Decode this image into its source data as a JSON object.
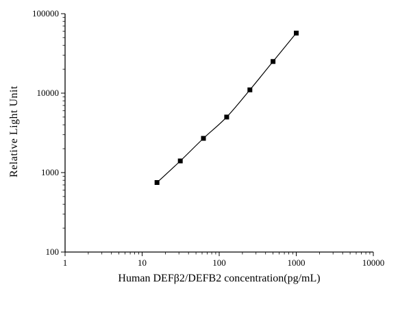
{
  "chart_data": {
    "type": "scatter",
    "title": "",
    "xlabel": "Human DEFβ2/DEFB2 concentration(pg/mL)",
    "ylabel": "Relative Light Unit",
    "xscale": "log",
    "yscale": "log",
    "xlim": [
      1,
      10000
    ],
    "ylim": [
      100,
      100000
    ],
    "x_ticks": [
      "1",
      "10",
      "100",
      "1000",
      "10000"
    ],
    "y_ticks": [
      "100",
      "1000",
      "10000",
      "100000"
    ],
    "grid": false,
    "legend": null,
    "marker": "filled-square",
    "line": "smooth-fit-curve",
    "x": [
      15.6,
      31.25,
      62.5,
      125,
      250,
      500,
      1000
    ],
    "y": [
      750,
      1400,
      2700,
      5000,
      11000,
      25000,
      57000
    ],
    "colors": {
      "marker": "#000000",
      "line": "#000000",
      "axis": "#000000",
      "background": "#ffffff"
    }
  }
}
